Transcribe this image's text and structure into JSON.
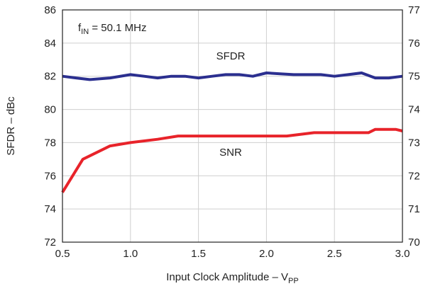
{
  "chart_data": {
    "type": "line",
    "xlabel": {
      "main": "Input Clock Amplitude – V",
      "sub": "PP"
    },
    "ylabel": "SFDR – dBc",
    "annotation": {
      "main": "f",
      "sub": "IN",
      "rest": " = 50.1 MHz"
    },
    "xlim": [
      0.5,
      3.0
    ],
    "ylim": [
      72,
      86
    ],
    "y2lim": [
      70,
      77
    ],
    "xticks": [
      "0.5",
      "1.0",
      "1.5",
      "2.0",
      "2.5",
      "3.0"
    ],
    "yticks": [
      "72",
      "74",
      "76",
      "78",
      "80",
      "82",
      "84",
      "86"
    ],
    "y2ticks": [
      "70",
      "71",
      "72",
      "73",
      "74",
      "75",
      "76",
      "77"
    ],
    "grid": true,
    "series": [
      {
        "name": "SFDR",
        "color": "#2b2f8f",
        "axis": "left",
        "x": [
          0.5,
          0.6,
          0.7,
          0.85,
          1.0,
          1.1,
          1.2,
          1.3,
          1.4,
          1.5,
          1.6,
          1.7,
          1.8,
          1.9,
          2.0,
          2.1,
          2.2,
          2.3,
          2.4,
          2.5,
          2.6,
          2.7,
          2.8,
          2.9,
          3.0
        ],
        "y": [
          82.0,
          81.9,
          81.8,
          81.9,
          82.1,
          82.0,
          81.9,
          82.0,
          82.0,
          81.9,
          82.0,
          82.1,
          82.1,
          82.0,
          82.2,
          82.15,
          82.1,
          82.1,
          82.1,
          82.0,
          82.1,
          82.2,
          81.9,
          81.9,
          82.0
        ]
      },
      {
        "name": "SNR",
        "color": "#e8232a",
        "axis": "right",
        "x": [
          0.5,
          0.65,
          0.85,
          1.0,
          1.2,
          1.35,
          1.5,
          1.7,
          1.9,
          2.0,
          2.15,
          2.35,
          2.5,
          2.6,
          2.75,
          2.8,
          2.95,
          3.0
        ],
        "y": [
          71.5,
          72.5,
          72.9,
          73.0,
          73.1,
          73.2,
          73.2,
          73.2,
          73.2,
          73.2,
          73.2,
          73.3,
          73.3,
          73.3,
          73.3,
          73.4,
          73.4,
          73.35
        ]
      }
    ]
  }
}
